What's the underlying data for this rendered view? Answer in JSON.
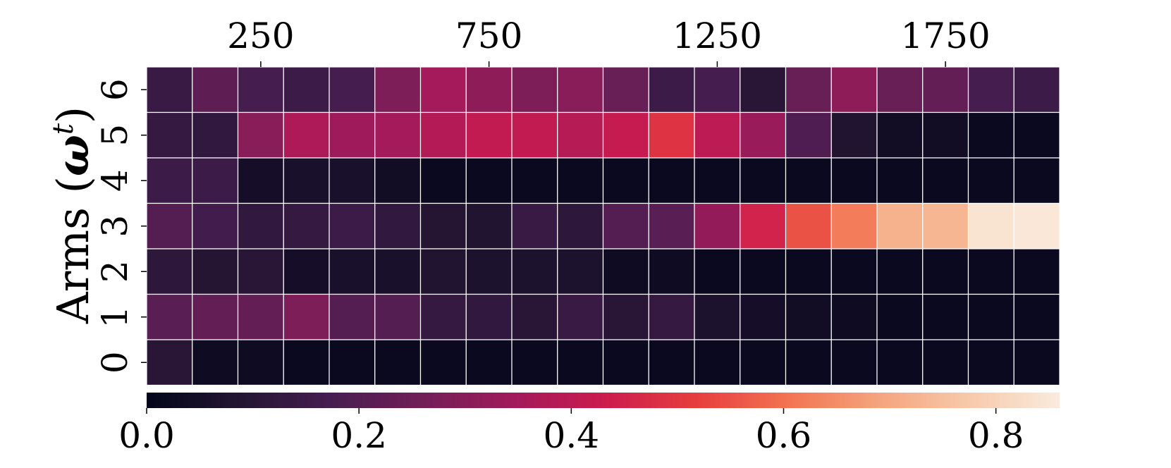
{
  "chart_data": {
    "type": "heatmap",
    "title": "",
    "ylabel_text": "Arms (",
    "ylabel_symbol": "ω",
    "ylabel_superscript": "t",
    "ylabel_close": ")",
    "xlabel": "",
    "x_tick_labels": [
      "250",
      "750",
      "1250",
      "1750"
    ],
    "x_tick_columns": [
      2,
      7,
      12,
      17
    ],
    "y_categories": [
      "0",
      "1",
      "2",
      "3",
      "4",
      "5",
      "6"
    ],
    "n_columns": 20,
    "colormap": "rocket",
    "colorbar": {
      "min": 0.0,
      "max": 0.86,
      "ticks": [
        0.0,
        0.2,
        0.4,
        0.6,
        0.8
      ],
      "tick_labels": [
        "0.0",
        "0.2",
        "0.4",
        "0.6",
        "0.8"
      ],
      "orientation": "horizontal",
      "position": "bottom"
    },
    "rows": [
      {
        "arm": "6",
        "values": [
          0.14,
          0.22,
          0.17,
          0.15,
          0.17,
          0.28,
          0.35,
          0.31,
          0.28,
          0.3,
          0.24,
          0.15,
          0.17,
          0.1,
          0.24,
          0.31,
          0.24,
          0.23,
          0.17,
          0.15
        ]
      },
      {
        "arm": "5",
        "values": [
          0.13,
          0.12,
          0.3,
          0.37,
          0.34,
          0.35,
          0.38,
          0.41,
          0.41,
          0.39,
          0.42,
          0.49,
          0.4,
          0.33,
          0.19,
          0.08,
          0.04,
          0.04,
          0.02,
          0.02
        ]
      },
      {
        "arm": "4",
        "values": [
          0.15,
          0.15,
          0.05,
          0.06,
          0.06,
          0.04,
          0.02,
          0.02,
          0.02,
          0.02,
          0.02,
          0.02,
          0.02,
          0.02,
          0.02,
          0.02,
          0.02,
          0.02,
          0.02,
          0.02
        ]
      },
      {
        "arm": "3",
        "values": [
          0.2,
          0.16,
          0.12,
          0.13,
          0.15,
          0.12,
          0.09,
          0.08,
          0.14,
          0.11,
          0.2,
          0.21,
          0.32,
          0.45,
          0.55,
          0.62,
          0.72,
          0.73,
          0.84,
          0.85
        ]
      },
      {
        "arm": "2",
        "values": [
          0.11,
          0.09,
          0.1,
          0.05,
          0.06,
          0.06,
          0.08,
          0.07,
          0.07,
          0.07,
          0.03,
          0.03,
          0.02,
          0.02,
          0.02,
          0.02,
          0.02,
          0.02,
          0.02,
          0.02
        ]
      },
      {
        "arm": "1",
        "values": [
          0.21,
          0.23,
          0.23,
          0.28,
          0.2,
          0.2,
          0.13,
          0.12,
          0.1,
          0.14,
          0.1,
          0.13,
          0.07,
          0.05,
          0.04,
          0.03,
          0.02,
          0.02,
          0.02,
          0.02
        ]
      },
      {
        "arm": "0",
        "values": [
          0.1,
          0.03,
          0.03,
          0.02,
          0.02,
          0.02,
          0.02,
          0.02,
          0.02,
          0.02,
          0.02,
          0.02,
          0.02,
          0.02,
          0.02,
          0.02,
          0.02,
          0.02,
          0.02,
          0.02
        ]
      }
    ]
  }
}
